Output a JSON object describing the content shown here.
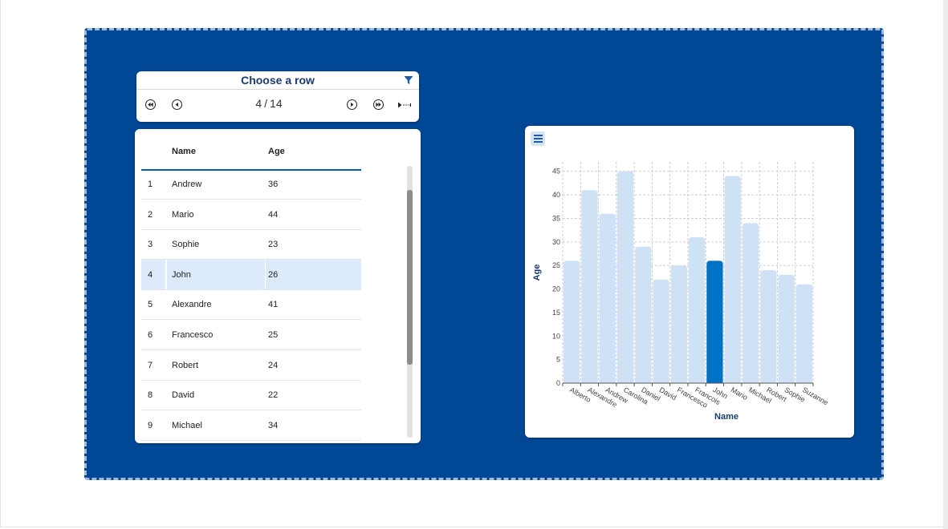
{
  "toolbar": {
    "title": "Choose a row",
    "current": "4",
    "separator": "/",
    "total": "14",
    "icons": [
      "first-icon",
      "previous-icon",
      "next-icon",
      "last-icon",
      "play-icon",
      "filter-icon"
    ]
  },
  "table": {
    "columns": [
      "Name",
      "Age"
    ],
    "rows": [
      {
        "idx": "1",
        "name": "Andrew",
        "age": "36"
      },
      {
        "idx": "2",
        "name": "Mario",
        "age": "44"
      },
      {
        "idx": "3",
        "name": "Sophie",
        "age": "23"
      },
      {
        "idx": "4",
        "name": "John",
        "age": "26"
      },
      {
        "idx": "5",
        "name": "Alexandre",
        "age": "41"
      },
      {
        "idx": "6",
        "name": "Francesco",
        "age": "25"
      },
      {
        "idx": "7",
        "name": "Robert",
        "age": "24"
      },
      {
        "idx": "8",
        "name": "David",
        "age": "22"
      },
      {
        "idx": "9",
        "name": "Michael",
        "age": "34"
      }
    ],
    "selected_index": 3
  },
  "colors": {
    "background": "#004896",
    "bar": "#cfe2f5",
    "bar_selected": "#0072c6",
    "axis_label": "#1b3b6f",
    "selected_row": "#dceafb"
  },
  "chart_data": {
    "type": "bar",
    "categories": [
      "Alberto",
      "Alexandre",
      "Andrew",
      "Carolina",
      "Daniel",
      "David",
      "Francesco",
      "Francois",
      "John",
      "Mario",
      "Michael",
      "Robert",
      "Sophie",
      "Suzanne"
    ],
    "values": [
      26,
      41,
      36,
      45,
      29,
      22,
      25,
      31,
      26,
      44,
      34,
      24,
      23,
      21
    ],
    "highlighted_category": "John",
    "xlabel": "Name",
    "ylabel": "Age",
    "ylim": [
      0,
      47
    ],
    "yticks": [
      0,
      5,
      10,
      15,
      20,
      25,
      30,
      35,
      40,
      45
    ],
    "grid": true
  }
}
